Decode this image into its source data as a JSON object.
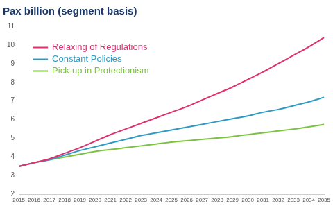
{
  "chart_data": {
    "type": "line",
    "title": "Pax billion (segment basis)",
    "categories": [
      "2015",
      "2016",
      "2017",
      "2018",
      "2019",
      "2020",
      "2021",
      "2022",
      "2023",
      "2024",
      "2025",
      "2026",
      "2027",
      "2028",
      "2029",
      "2030",
      "2031",
      "2032",
      "2033",
      "2034",
      "2035"
    ],
    "series": [
      {
        "name": "Relaxing of Regulations",
        "color": "#e0306f",
        "values": [
          3.5,
          3.7,
          3.9,
          4.2,
          4.5,
          4.85,
          5.2,
          5.5,
          5.8,
          6.1,
          6.4,
          6.7,
          7.05,
          7.4,
          7.75,
          8.15,
          8.55,
          9.0,
          9.45,
          9.9,
          10.4
        ]
      },
      {
        "name": "Constant Policies",
        "color": "#2e9ac4",
        "values": [
          3.5,
          3.7,
          3.85,
          4.1,
          4.35,
          4.55,
          4.75,
          4.95,
          5.15,
          5.3,
          5.45,
          5.6,
          5.75,
          5.9,
          6.05,
          6.2,
          6.4,
          6.55,
          6.75,
          6.95,
          7.2
        ]
      },
      {
        "name": "Pick-up in Protectionism",
        "color": "#7cc242",
        "values": [
          3.5,
          3.7,
          3.85,
          4.0,
          4.15,
          4.3,
          4.4,
          4.5,
          4.6,
          4.7,
          4.8,
          4.87,
          4.95,
          5.02,
          5.1,
          5.2,
          5.3,
          5.4,
          5.5,
          5.62,
          5.75
        ]
      }
    ],
    "ylim": [
      2,
      11
    ],
    "yticks": [
      2,
      3,
      4,
      5,
      6,
      7,
      8,
      9,
      10,
      11
    ],
    "grid": false,
    "legend": "upper left"
  }
}
